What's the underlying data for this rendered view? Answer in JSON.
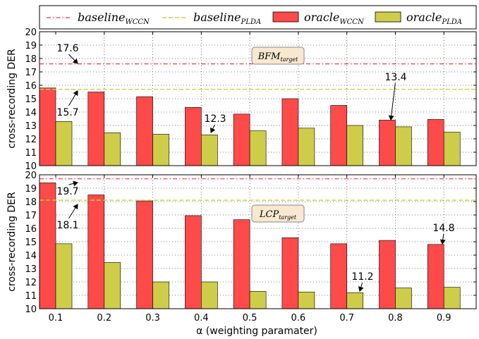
{
  "chart_data": [
    {
      "type": "bar",
      "panel_label": {
        "main": "BFM",
        "sub": "target"
      },
      "categories": [
        "0.1",
        "0.2",
        "0.3",
        "0.4",
        "0.5",
        "0.6",
        "0.7",
        "0.8",
        "0.9"
      ],
      "series": [
        {
          "name": "oracle_WCCN",
          "values": [
            15.8,
            15.5,
            15.15,
            14.35,
            13.85,
            15.0,
            14.5,
            13.4,
            13.45
          ]
        },
        {
          "name": "oracle_PLDA",
          "values": [
            13.3,
            12.45,
            12.35,
            12.3,
            12.6,
            12.8,
            13.0,
            12.9,
            12.5
          ]
        }
      ],
      "baselines": {
        "baseline_WCCN": 17.6,
        "baseline_PLDA": 15.7
      },
      "ylabel": "cross-recording DER",
      "ylim": [
        10,
        20
      ],
      "yticks": [
        "10",
        "11",
        "12",
        "13",
        "14",
        "15",
        "16",
        "17",
        "18",
        "19",
        "20"
      ],
      "annotations": [
        {
          "text": "17.6",
          "x": 0.16,
          "y": 17.6
        },
        {
          "text": "15.7",
          "x": 0.16,
          "y": 15.7
        },
        {
          "text": "12.3",
          "x": 0.43,
          "y": 12.3
        },
        {
          "text": "13.4",
          "x": 0.8,
          "y": 13.4
        }
      ],
      "grid": true
    },
    {
      "type": "bar",
      "panel_label": {
        "main": "LCP",
        "sub": "target"
      },
      "categories": [
        "0.1",
        "0.2",
        "0.3",
        "0.4",
        "0.5",
        "0.6",
        "0.7",
        "0.8",
        "0.9"
      ],
      "series": [
        {
          "name": "oracle_WCCN",
          "values": [
            19.4,
            18.5,
            18.05,
            16.95,
            16.65,
            15.3,
            14.85,
            15.1,
            14.8
          ]
        },
        {
          "name": "oracle_PLDA",
          "values": [
            14.85,
            13.45,
            12.0,
            12.0,
            11.3,
            11.25,
            11.2,
            11.55,
            11.6
          ]
        }
      ],
      "baselines": {
        "baseline_WCCN": 19.7,
        "baseline_PLDA": 18.1
      },
      "ylabel": "cross-recording DER",
      "xlabel": "α (weighting paramater)",
      "ylim": [
        10,
        20
      ],
      "yticks": [
        "10",
        "11",
        "12",
        "13",
        "14",
        "15",
        "16",
        "17",
        "18",
        "19",
        "20"
      ],
      "xticks": [
        "0.1",
        "0.2",
        "0.3",
        "0.4",
        "0.5",
        "0.6",
        "0.7",
        "0.8",
        "0.9"
      ],
      "annotations": [
        {
          "text": "19.7",
          "x": 0.16,
          "y": 19.7
        },
        {
          "text": "18.1",
          "x": 0.16,
          "y": 18.1
        },
        {
          "text": "11.2",
          "x": 0.73,
          "y": 11.2
        },
        {
          "text": "14.8",
          "x": 0.9,
          "y": 14.8
        }
      ],
      "grid": true
    }
  ],
  "legend": [
    {
      "main": "baseline",
      "sub": "WCCN",
      "kind": "dashdot",
      "color": "#ff3333"
    },
    {
      "main": "baseline",
      "sub": "PLDA",
      "kind": "dashed",
      "color": "#c8d44a"
    },
    {
      "main": "oracle",
      "sub": "WCCN",
      "kind": "patch",
      "color": "#ff4a4a"
    },
    {
      "main": "oracle",
      "sub": "PLDA",
      "kind": "patch",
      "color": "#cdcd4a"
    }
  ],
  "colors": {
    "wccn": "#ff4a4a",
    "plda": "#cdcd4a",
    "baseline_wccn": "#ff3333",
    "baseline_plda": "#c8d44a"
  }
}
